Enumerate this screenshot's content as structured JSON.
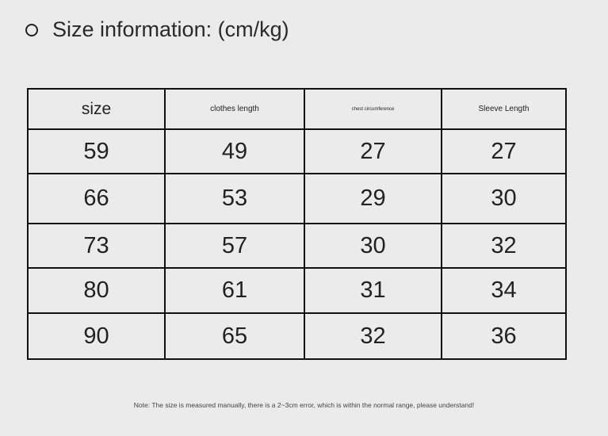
{
  "title": "Size information: (cm/kg)",
  "headers": [
    "size",
    "clothes length",
    "chest circumference",
    "Sleeve Length"
  ],
  "rows": [
    [
      "59",
      "49",
      "27",
      "27"
    ],
    [
      "66",
      "53",
      "29",
      "30"
    ],
    [
      "73",
      "57",
      "30",
      "32"
    ],
    [
      "80",
      "61",
      "31",
      "34"
    ],
    [
      "90",
      "65",
      "32",
      "36"
    ]
  ],
  "note": "Note: The size is measured manually, there is a 2~3cm error, which is within the normal range, please understand!"
}
